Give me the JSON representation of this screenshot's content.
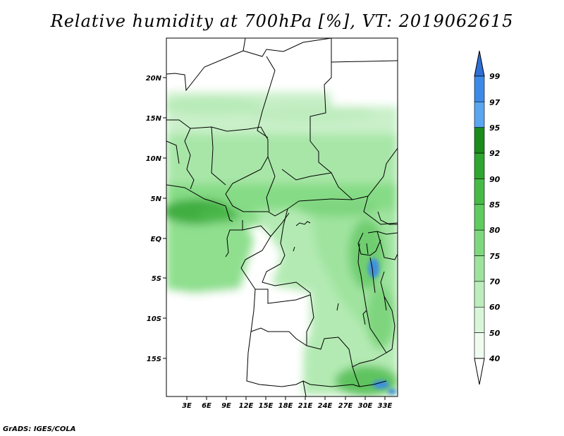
{
  "title": "Relative humidity at 700hPa [%], VT: 2019062615",
  "credit": "GrADS: IGES/COLA",
  "map": {
    "lat_ticks": [
      "20N",
      "15N",
      "10N",
      "5N",
      "EQ",
      "5S",
      "10S",
      "15S"
    ],
    "lon_ticks": [
      "3E",
      "6E",
      "9E",
      "12E",
      "15E",
      "18E",
      "21E",
      "24E",
      "27E",
      "30E",
      "33E"
    ]
  },
  "colorbar": {
    "levels": [
      "99",
      "97",
      "95",
      "92",
      "90",
      "85",
      "80",
      "75",
      "70",
      "60",
      "50",
      "40"
    ],
    "colors": [
      "#2f6fd6",
      "#3c8ae8",
      "#5aa6f0",
      "#1a8c1a",
      "#2fa62f",
      "#46bb46",
      "#5fcc5f",
      "#7ed97e",
      "#9de39d",
      "#bdedbd",
      "#d9f6d9",
      "#f0fcf0"
    ]
  }
}
